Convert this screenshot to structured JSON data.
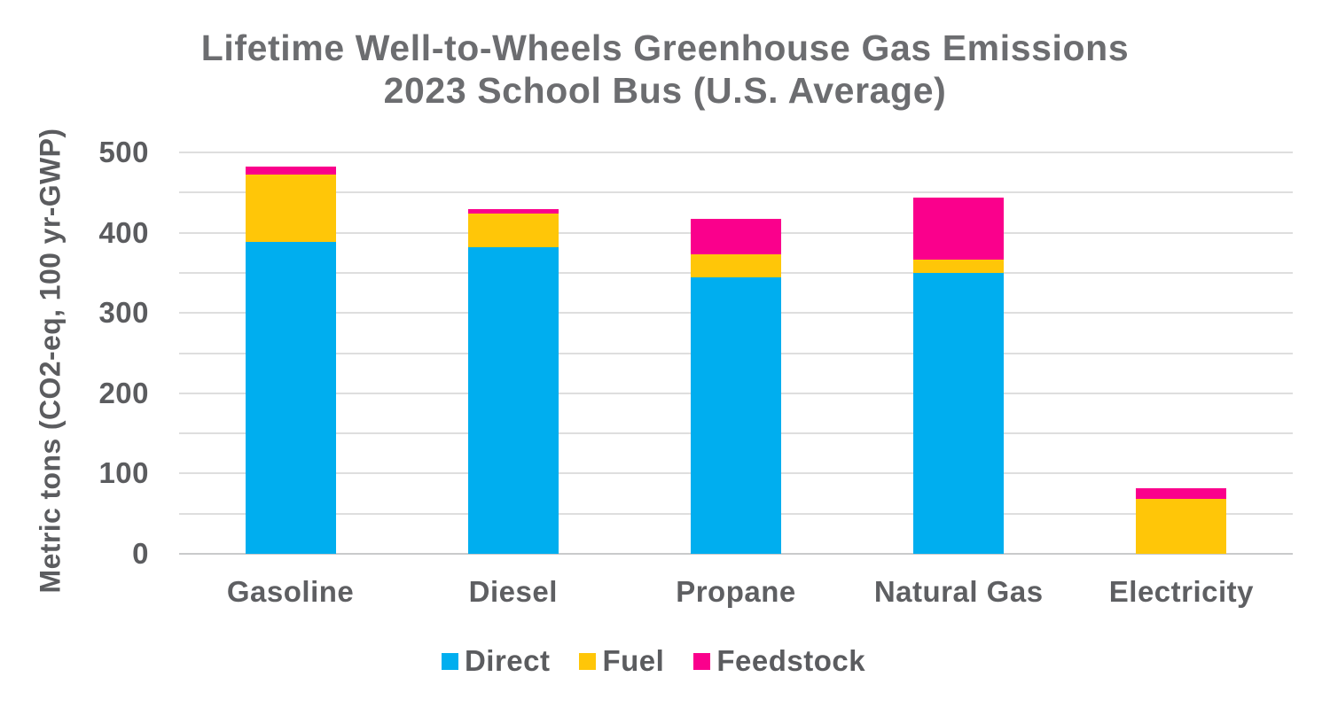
{
  "title": {
    "line1": "Lifetime Well-to-Wheels Greenhouse Gas Emissions",
    "line2": "2023 School Bus (U.S. Average)"
  },
  "y_axis": {
    "label": "Metric tons (CO2-eq, 100 yr-GWP)",
    "tick_labels": [
      "0",
      "100",
      "200",
      "300",
      "400",
      "500"
    ],
    "min": 0,
    "max": 500,
    "tick_step": 100,
    "grid_step": 50
  },
  "chart_data": {
    "type": "bar",
    "stacked": true,
    "title": "Lifetime Well-to-Wheels Greenhouse Gas Emissions 2023 School Bus (U.S. Average)",
    "xlabel": "",
    "ylabel": "Metric tons (CO2-eq, 100 yr-GWP)",
    "ylim": [
      0,
      500
    ],
    "grid": true,
    "grid_interval": 50,
    "legend_position": "bottom",
    "categories": [
      "Gasoline",
      "Diesel",
      "Propane",
      "Natural Gas",
      "Electricity"
    ],
    "series": [
      {
        "name": "Direct",
        "color": "#00AEEF",
        "values": [
          389,
          382,
          344,
          350,
          0
        ]
      },
      {
        "name": "Fuel",
        "color": "#FFC608",
        "values": [
          83,
          42,
          29,
          16,
          68
        ]
      },
      {
        "name": "Feedstock",
        "color": "#FA008C",
        "values": [
          10,
          5,
          44,
          78,
          14
        ]
      }
    ]
  },
  "legend": {
    "items": [
      {
        "label": "Direct",
        "color": "#00AEEF"
      },
      {
        "label": "Fuel",
        "color": "#FFC608"
      },
      {
        "label": "Feedstock",
        "color": "#FA008C"
      }
    ]
  },
  "colors": {
    "direct": "#00AEEF",
    "fuel": "#FFC608",
    "feedstock": "#FA008C",
    "gridline": "#DEDEDE",
    "baseline": "#C9CACB",
    "title_text": "#6C6D70",
    "axis_text": "#5B5C5F",
    "background": "#FFFFFF"
  }
}
